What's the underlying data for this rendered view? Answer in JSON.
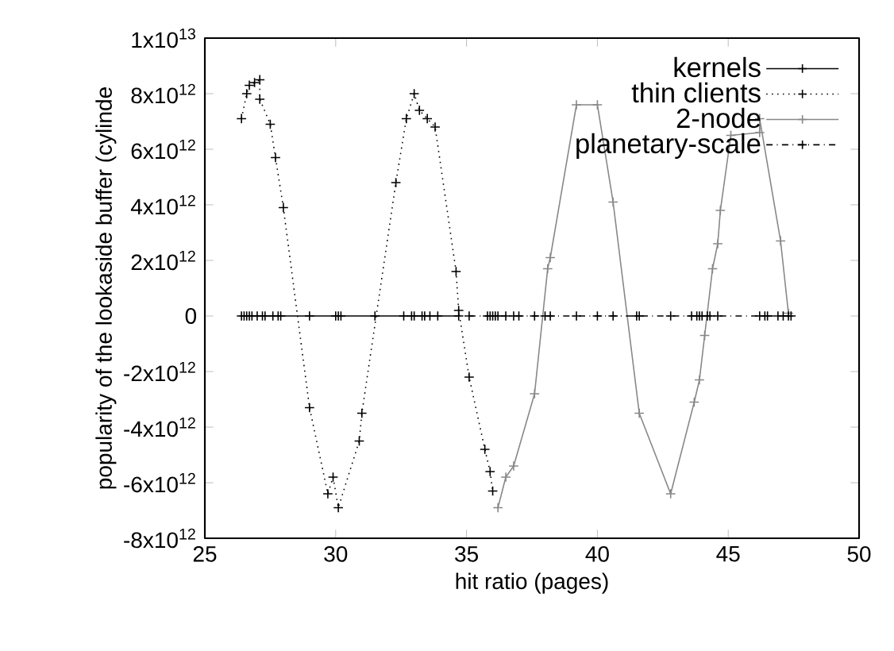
{
  "chart_data": {
    "type": "line",
    "xlabel": "hit ratio (pages)",
    "ylabel": "popularity of the lookaside buffer  (cylinde",
    "xlim": [
      25,
      50
    ],
    "xticks": [
      25,
      30,
      35,
      40,
      45,
      50
    ],
    "ylim": [
      -8000000000000.0,
      10000000000000.0
    ],
    "yticks": [
      {
        "value": -8000000000000.0,
        "label": "-8x10$^{12}$"
      },
      {
        "value": -6000000000000.0,
        "label": "-6x10$^{12}$"
      },
      {
        "value": -4000000000000.0,
        "label": "-4x10$^{12}$"
      },
      {
        "value": -2000000000000.0,
        "label": "-2x10$^{12}$"
      },
      0,
      {
        "value": 2000000000000.0,
        "label": "2x10$^{12}$"
      },
      {
        "value": 4000000000000.0,
        "label": "4x10$^{12}$"
      },
      {
        "value": 6000000000000.0,
        "label": "6x10$^{12}$"
      },
      {
        "value": 8000000000000.0,
        "label": "8x10$^{12}$"
      },
      {
        "value": 10000000000000.0,
        "label": "1x10$^{13}$"
      }
    ],
    "legend": "top right",
    "marker": "cross",
    "series": [
      {
        "name": "kernels",
        "color": "#000000",
        "line_style": "solid",
        "x": [
          26.4,
          26.5,
          26.6,
          26.7,
          26.8,
          27.0,
          27.2,
          27.3,
          27.6,
          27.8,
          27.9,
          29.0,
          30.0,
          30.1,
          30.2,
          31.5,
          32.6,
          32.9,
          33.0,
          33.3,
          33.4,
          33.6,
          33.9,
          34.7
        ],
        "values": [
          0,
          0,
          0,
          0,
          0,
          0,
          0,
          0,
          0,
          0,
          0,
          0,
          0,
          0,
          0,
          0,
          0,
          0,
          0,
          0,
          0,
          0,
          0,
          0
        ]
      },
      {
        "name": "thin clients",
        "color": "#000000",
        "line_style": "dotted",
        "x": [
          26.4,
          26.6,
          26.7,
          26.9,
          27.1,
          27.1,
          27.5,
          27.7,
          28.0,
          29.0,
          29.7,
          29.9,
          30.1,
          30.9,
          31.0,
          32.3,
          32.7,
          33.0,
          33.2,
          33.5,
          33.8,
          34.6,
          34.7,
          35.1,
          35.7,
          35.9,
          36.0
        ],
        "values": [
          7100000000000.0,
          8000000000000.0,
          8300000000000.0,
          8400000000000.0,
          8500000000000.0,
          7800000000000.0,
          6900000000000.0,
          5700000000000.0,
          3900000000000.0,
          -3300000000000.0,
          -6400000000000.0,
          -5800000000000.0,
          -6900000000000.0,
          -4500000000000.0,
          -3500000000000.0,
          4800000000000.0,
          7100000000000.0,
          8000000000000.0,
          7400000000000.0,
          7100000000000.0,
          6800000000000.0,
          1600000000000.0,
          200000000000.0,
          -2200000000000.0,
          -4800000000000.0,
          -5600000000000.0,
          -6300000000000.0
        ]
      },
      {
        "name": "2-node",
        "color": "#888888",
        "line_style": "solid",
        "x": [
          36.2,
          36.5,
          36.8,
          37.6,
          38.1,
          38.2,
          39.2,
          40.0,
          40.6,
          41.6,
          42.8,
          43.7,
          43.9,
          44.1,
          44.4,
          44.6,
          44.7,
          45.1,
          46.2,
          46.2,
          47.0,
          47.3
        ],
        "values": [
          -6900000000000.0,
          -5800000000000.0,
          -5400000000000.0,
          -2800000000000.0,
          1700000000000.0,
          2100000000000.0,
          7600000000000.0,
          7600000000000.0,
          4100000000000.0,
          -3500000000000.0,
          -6400000000000.0,
          -3100000000000.0,
          -2300000000000.0,
          -700000000000.0,
          1700000000000.0,
          2600000000000.0,
          3800000000000.0,
          6500000000000.0,
          6600000000000.0,
          7100000000000.0,
          2700000000000.0,
          100000000000.0
        ]
      },
      {
        "name": "planetary-scale",
        "color": "#000000",
        "line_style": "dashdot",
        "x": [
          35.1,
          35.8,
          35.9,
          36.0,
          36.1,
          36.2,
          36.5,
          36.8,
          37.0,
          37.6,
          38.0,
          38.2,
          39.2,
          40.0,
          40.6,
          41.5,
          41.6,
          42.8,
          43.6,
          43.8,
          43.9,
          44.0,
          44.2,
          44.3,
          44.6,
          46.2,
          46.4,
          46.5,
          46.9,
          47.1,
          47.3,
          47.4
        ],
        "values": [
          0,
          0,
          0,
          0,
          0,
          0,
          0,
          0,
          0,
          0,
          0,
          0,
          0,
          0,
          0,
          0,
          0,
          0,
          0,
          0,
          0,
          0,
          0,
          0,
          0,
          0,
          0,
          0,
          0,
          0,
          0,
          0
        ]
      }
    ]
  }
}
